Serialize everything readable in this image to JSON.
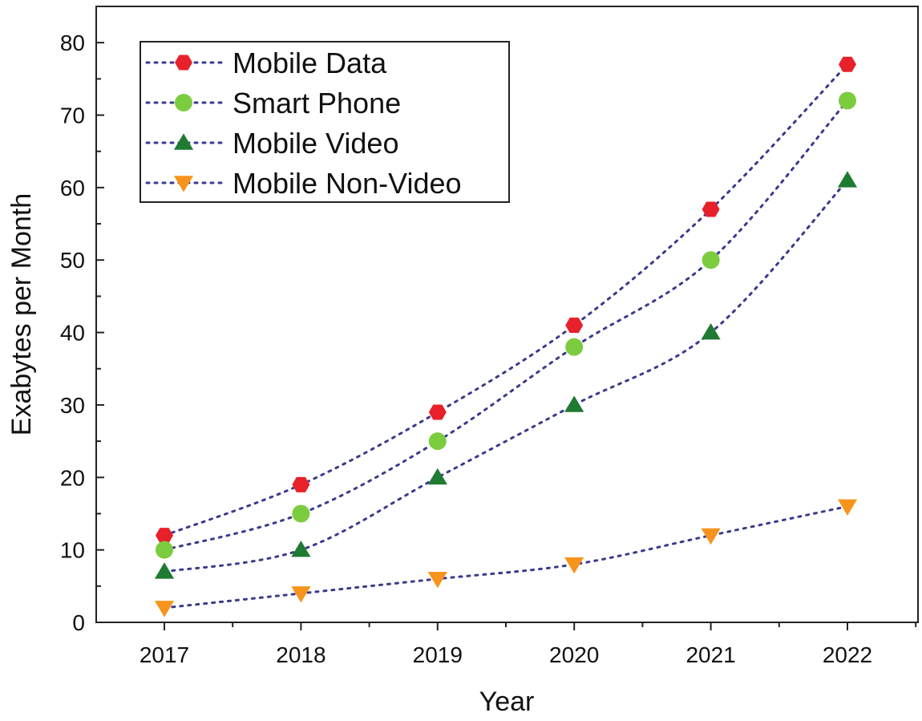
{
  "chart_data": {
    "type": "scatter",
    "title": "",
    "xlabel": "Year",
    "ylabel": "Exabytes per Month",
    "categories": [
      "2017",
      "2018",
      "2019",
      "2020",
      "2021",
      "2022"
    ],
    "ylim": [
      0,
      85
    ],
    "yticks": [
      0,
      10,
      20,
      30,
      40,
      50,
      60,
      70,
      80
    ],
    "grid": false,
    "legend_position": "top-left",
    "trendline_style": "dotted",
    "trendline_color": "#3a3a8c",
    "series": [
      {
        "name": "Mobile Data",
        "marker": "hexagon",
        "color": "#e8202a",
        "values": [
          12,
          19,
          29,
          41,
          57,
          77
        ]
      },
      {
        "name": "Smart Phone",
        "marker": "circle",
        "color": "#7ccc3f",
        "values": [
          10,
          15,
          25,
          38,
          50,
          72
        ]
      },
      {
        "name": "Mobile Video",
        "marker": "triangle-up",
        "color": "#1f7a32",
        "values": [
          7,
          10,
          20,
          30,
          40,
          61
        ]
      },
      {
        "name": "Mobile Non-Video",
        "marker": "triangle-down",
        "color": "#f7941d",
        "values": [
          2,
          4,
          6,
          8,
          12,
          16
        ]
      }
    ]
  }
}
